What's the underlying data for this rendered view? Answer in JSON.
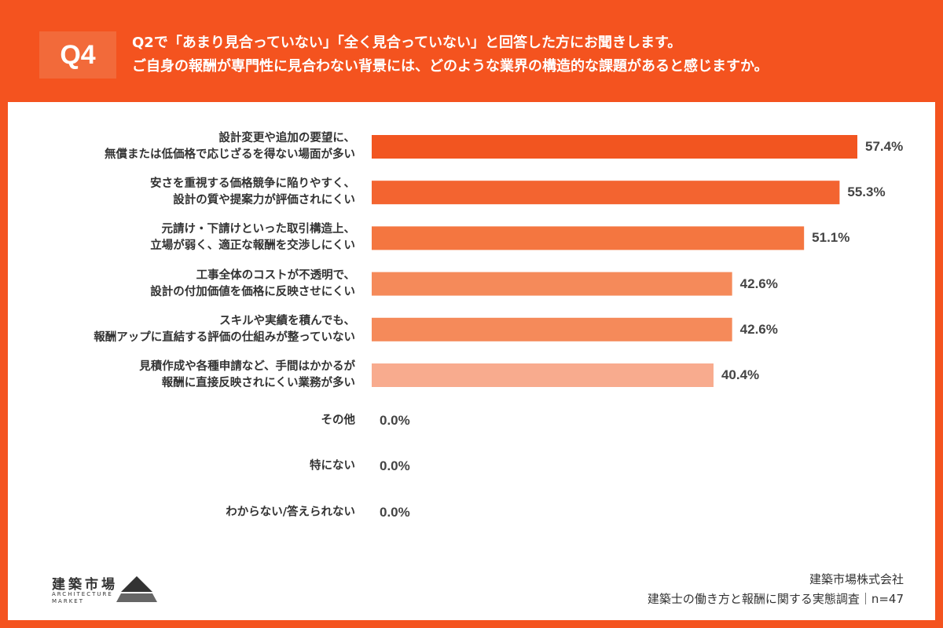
{
  "header": {
    "badge": "Q4",
    "title_lines": [
      "Q2で「あまり見合っていない」「全く見合っていない」と回答した方にお聞きします。",
      "ご自身の報酬が専門性に見合わない背景には、どのような業界の構造的な課題があると感じますか。"
    ]
  },
  "chart_data": {
    "type": "hbar",
    "categories": [
      "設計変更や追加の要望に、\n無償または低価格で応じざるを得ない場面が多い",
      "安さを重視する価格競争に陥りやすく、\n設計の質や提案力が評価されにくい",
      "元請け・下請けといった取引構造上、\n立場が弱く、適正な報酬を交渉しにくい",
      "工事全体のコストが不透明で、\n設計の付加価値を価格に反映させにくい",
      "スキルや実績を積んでも、\n報酬アップに直結する評価の仕組みが整っていない",
      "見積作成や各種申請など、手間はかかるが\n報酬に直接反映されにくい業務が多い",
      "その他",
      "特にない",
      "わからない/答えられない"
    ],
    "values": [
      57.4,
      55.3,
      51.1,
      42.6,
      42.6,
      40.4,
      0,
      0,
      0
    ],
    "value_labels": [
      "57.4%",
      "55.3%",
      "51.1%",
      "42.6%",
      "42.6%",
      "40.4%",
      "0.0%",
      "0.0%",
      "0.0%"
    ],
    "colors": [
      "#f25520",
      "#f36430",
      "#f47640",
      "#f58a5a",
      "#f58a5a",
      "#f8ab8e",
      "#f8ab8e",
      "#f8ab8e",
      "#f8ab8e"
    ],
    "xlim": [
      0,
      60
    ]
  },
  "footer": {
    "logo_name": "建築市場",
    "logo_sub": "ARCHITECTURE\nMARKET",
    "company": "建築市場株式会社",
    "survey": "建築士の働き方と報酬に関する実態調査｜n=47"
  }
}
